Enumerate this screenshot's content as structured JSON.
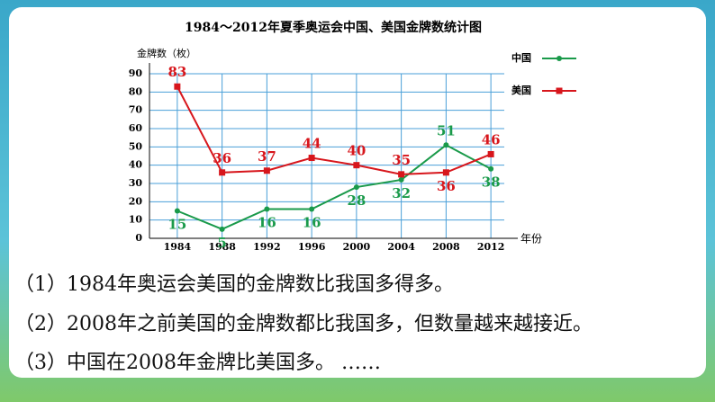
{
  "chart_data": {
    "type": "line",
    "title": "1984～2012年夏季奥运会中国、美国金牌数统计图",
    "y_label": "金牌数（枚）",
    "x_label": "年份",
    "categories": [
      "1984",
      "1988",
      "1992",
      "1996",
      "2000",
      "2004",
      "2008",
      "2012"
    ],
    "series": [
      {
        "name": "中国",
        "color": "#1a9a4a",
        "values": [
          15,
          5,
          16,
          16,
          28,
          32,
          51,
          38
        ]
      },
      {
        "name": "美国",
        "color": "#d7161c",
        "values": [
          83,
          36,
          37,
          44,
          40,
          35,
          36,
          46
        ]
      }
    ],
    "ylim": [
      0,
      90
    ],
    "yticks": [
      0,
      10,
      20,
      30,
      40,
      50,
      60,
      70,
      80,
      90
    ],
    "grid": true,
    "legend": "top-right"
  },
  "statements": [
    "（1）1984年奥运会美国的金牌数比我国多得多。",
    "（2）2008年之前美国的金牌数都比我国多，但数量越来越接近。",
    "（3）中国在2008年金牌比美国多。 ……"
  ]
}
